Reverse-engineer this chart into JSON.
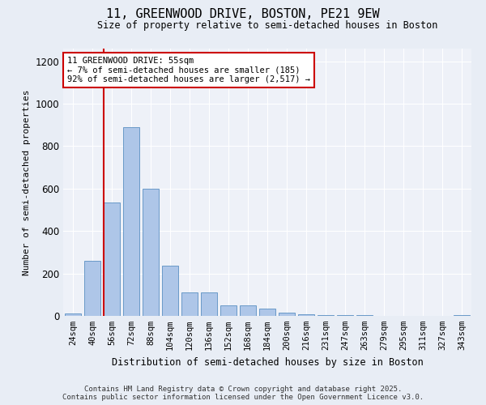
{
  "title": "11, GREENWOOD DRIVE, BOSTON, PE21 9EW",
  "subtitle": "Size of property relative to semi-detached houses in Boston",
  "xlabel": "Distribution of semi-detached houses by size in Boston",
  "ylabel": "Number of semi-detached properties",
  "categories": [
    "24sqm",
    "40sqm",
    "56sqm",
    "72sqm",
    "88sqm",
    "104sqm",
    "120sqm",
    "136sqm",
    "152sqm",
    "168sqm",
    "184sqm",
    "200sqm",
    "216sqm",
    "231sqm",
    "247sqm",
    "263sqm",
    "279sqm",
    "295sqm",
    "311sqm",
    "327sqm",
    "343sqm"
  ],
  "values": [
    10,
    260,
    535,
    890,
    600,
    235,
    110,
    110,
    50,
    50,
    35,
    15,
    8,
    5,
    2,
    2,
    1,
    0,
    0,
    0,
    5
  ],
  "bar_color": "#aec6e8",
  "bar_edge_color": "#5a8fc2",
  "vline_color": "#cc0000",
  "annotation_title": "11 GREENWOOD DRIVE: 55sqm",
  "annotation_line1": "← 7% of semi-detached houses are smaller (185)",
  "annotation_line2": "92% of semi-detached houses are larger (2,517) →",
  "annotation_box_color": "#cc0000",
  "ylim": [
    0,
    1260
  ],
  "yticks": [
    0,
    200,
    400,
    600,
    800,
    1000,
    1200
  ],
  "footnote1": "Contains HM Land Registry data © Crown copyright and database right 2025.",
  "footnote2": "Contains public sector information licensed under the Open Government Licence v3.0.",
  "bg_color": "#e8edf5",
  "plot_bg_color": "#eef1f8"
}
